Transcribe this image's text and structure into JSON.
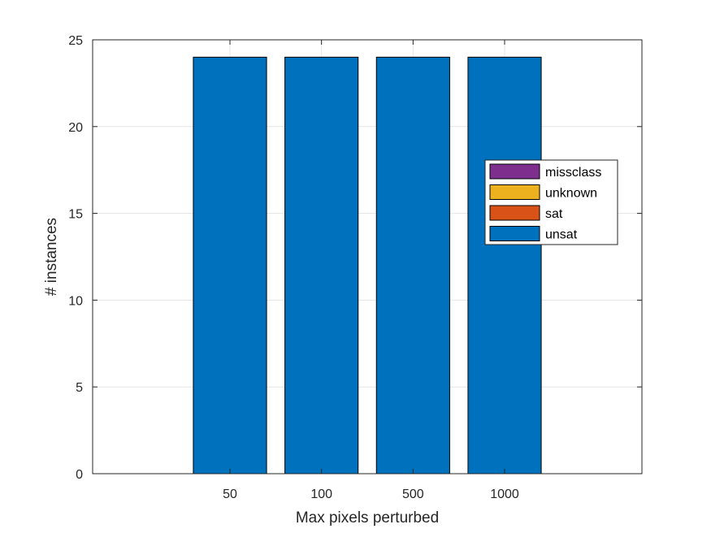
{
  "chart_data": {
    "type": "bar",
    "stacked": true,
    "categories": [
      "50",
      "100",
      "500",
      "1000"
    ],
    "series": [
      {
        "name": "unsat",
        "values": [
          24,
          24,
          24,
          24
        ],
        "color": "#0072BD"
      },
      {
        "name": "sat",
        "values": [
          0,
          0,
          0,
          0
        ],
        "color": "#D95319"
      },
      {
        "name": "unknown",
        "values": [
          0,
          0,
          0,
          0
        ],
        "color": "#EDB120"
      },
      {
        "name": "missclass",
        "values": [
          0,
          0,
          0,
          0
        ],
        "color": "#7E2F8E"
      }
    ],
    "legend_order": [
      "missclass",
      "unknown",
      "sat",
      "unsat"
    ],
    "xlabel": "Max pixels perturbed",
    "ylabel": "# instances",
    "ylim": [
      0,
      25
    ],
    "yticks": [
      0,
      5,
      10,
      15,
      20,
      25
    ],
    "grid": true,
    "legend_position": "right"
  }
}
